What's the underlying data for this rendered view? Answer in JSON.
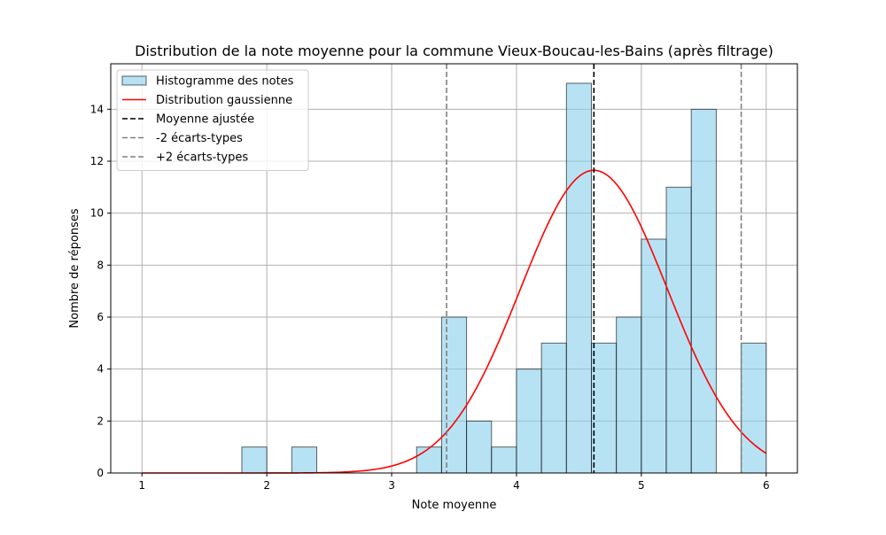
{
  "chart_data": {
    "type": "histogram",
    "title": "Distribution de la note moyenne pour la commune Vieux-Boucau-les-Bains (après filtrage)",
    "xlabel": "Note moyenne",
    "ylabel": "Nombre de réponses",
    "xlim": [
      0.75,
      6.25
    ],
    "ylim": [
      0,
      15.75
    ],
    "xticks": [
      1,
      2,
      3,
      4,
      5,
      6
    ],
    "yticks": [
      0,
      2,
      4,
      6,
      8,
      10,
      12,
      14
    ],
    "grid": true,
    "legend_position": "upper-left",
    "bin_width": 0.2,
    "bins": [
      {
        "start": 1.8,
        "count": 1
      },
      {
        "start": 2.2,
        "count": 1
      },
      {
        "start": 3.2,
        "count": 1
      },
      {
        "start": 3.4,
        "count": 6
      },
      {
        "start": 3.6,
        "count": 2
      },
      {
        "start": 3.8,
        "count": 1
      },
      {
        "start": 4.0,
        "count": 4
      },
      {
        "start": 4.2,
        "count": 5
      },
      {
        "start": 4.4,
        "count": 15
      },
      {
        "start": 4.6,
        "count": 5
      },
      {
        "start": 4.8,
        "count": 6
      },
      {
        "start": 5.0,
        "count": 9
      },
      {
        "start": 5.2,
        "count": 11
      },
      {
        "start": 5.4,
        "count": 14
      },
      {
        "start": 5.8,
        "count": 5
      }
    ],
    "gaussian": {
      "mean": 4.62,
      "std": 0.59,
      "peak": 11.65,
      "x_range": [
        1,
        6
      ]
    },
    "mean_line": 4.62,
    "minus_2std_line": 3.44,
    "plus_2std_line": 5.8,
    "legend": [
      {
        "label": "Histogramme des notes",
        "kind": "patch"
      },
      {
        "label": "Distribution gaussienne",
        "kind": "line"
      },
      {
        "label": "Moyenne ajustée",
        "kind": "dash-black"
      },
      {
        "label": "-2 écarts-types",
        "kind": "dash-gray"
      },
      {
        "label": "+2 écarts-types",
        "kind": "dash-gray"
      }
    ],
    "colors": {
      "bar_fill": "#87ceeb",
      "bar_edge": "#000000",
      "gaussian": "#ff0000",
      "mean": "#000000",
      "std_lines": "#808080",
      "grid": "#b0b0b0"
    }
  }
}
